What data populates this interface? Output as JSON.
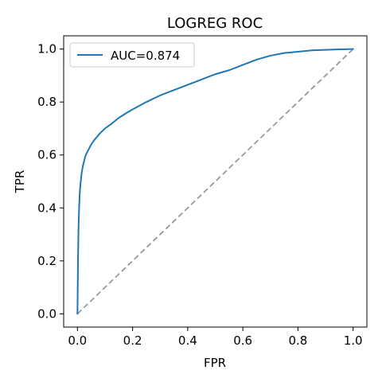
{
  "chart_data": {
    "type": "line",
    "title": "LOGREG ROC",
    "xlabel": "FPR",
    "ylabel": "TPR",
    "xlim": [
      -0.05,
      1.05
    ],
    "ylim": [
      -0.05,
      1.05
    ],
    "xticks": [
      "0.0",
      "0.2",
      "0.4",
      "0.6",
      "0.8",
      "1.0"
    ],
    "yticks": [
      "0.0",
      "0.2",
      "0.4",
      "0.6",
      "0.8",
      "1.0"
    ],
    "xtick_values": [
      0,
      0.2,
      0.4,
      0.6,
      0.8,
      1.0
    ],
    "ytick_values": [
      0,
      0.2,
      0.4,
      0.6,
      0.8,
      1.0
    ],
    "grid": false,
    "legend": "top-left",
    "series": [
      {
        "name": "AUC=0.874",
        "color": "#1f77b4",
        "style": "solid",
        "x": [
          0,
          0.002,
          0.004,
          0.006,
          0.008,
          0.01,
          0.015,
          0.02,
          0.03,
          0.04,
          0.05,
          0.06,
          0.08,
          0.1,
          0.12,
          0.15,
          0.18,
          0.2,
          0.25,
          0.3,
          0.35,
          0.4,
          0.45,
          0.5,
          0.55,
          0.6,
          0.65,
          0.7,
          0.75,
          0.8,
          0.85,
          0.9,
          0.95,
          1.0
        ],
        "y": [
          0,
          0.2,
          0.33,
          0.4,
          0.45,
          0.48,
          0.53,
          0.56,
          0.6,
          0.62,
          0.64,
          0.655,
          0.68,
          0.7,
          0.715,
          0.74,
          0.76,
          0.772,
          0.8,
          0.825,
          0.845,
          0.865,
          0.885,
          0.905,
          0.92,
          0.94,
          0.96,
          0.975,
          0.985,
          0.99,
          0.995,
          0.997,
          0.999,
          1.0
        ]
      }
    ],
    "reference_line": {
      "x": [
        0,
        1
      ],
      "y": [
        0,
        1
      ],
      "color": "#999999",
      "style": "dashed"
    }
  }
}
